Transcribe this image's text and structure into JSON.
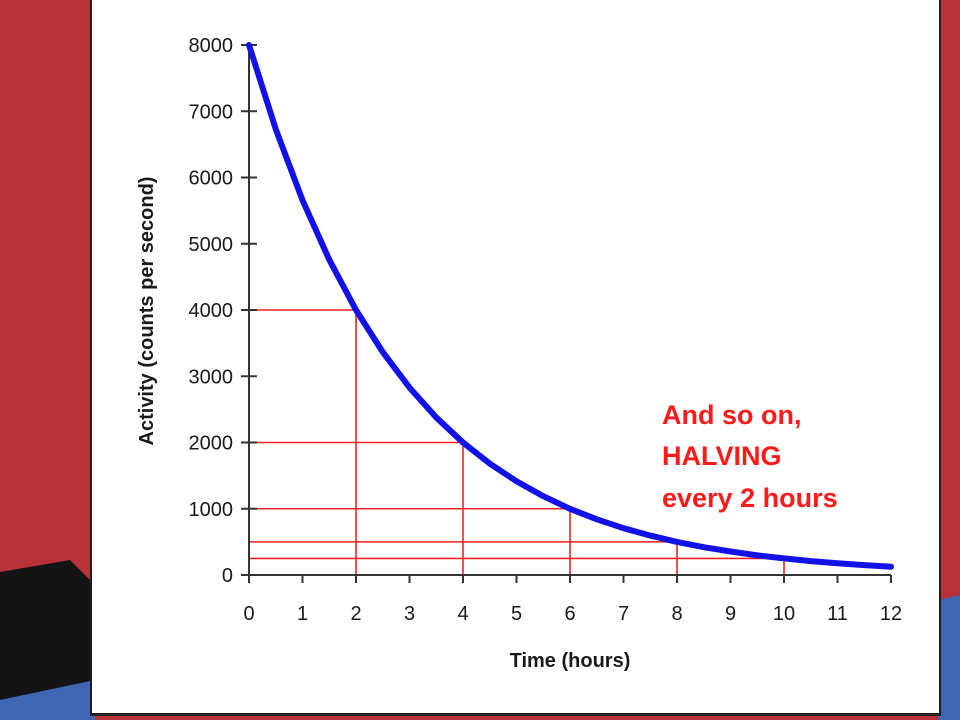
{
  "colors": {
    "slide_red": "#b8323a",
    "slide_black": "#141414",
    "slide_blue": "#3f65b3",
    "curve": "#1212e8",
    "guides": "#ee2222",
    "annotation": "#ff1a1a"
  },
  "chart_data": {
    "type": "line",
    "title": "",
    "xlabel": "Time (hours)",
    "ylabel": "Activity (counts per second)",
    "xlim": [
      0,
      12
    ],
    "ylim": [
      0,
      8000
    ],
    "x_ticks": [
      0,
      1,
      2,
      3,
      4,
      5,
      6,
      7,
      8,
      9,
      10,
      11,
      12
    ],
    "y_ticks": [
      0,
      1000,
      2000,
      3000,
      4000,
      5000,
      6000,
      7000,
      8000
    ],
    "grid": false,
    "series": [
      {
        "x": [
          0,
          0.5,
          1,
          1.5,
          2,
          2.5,
          3,
          3.5,
          4,
          4.5,
          5,
          5.5,
          6,
          6.5,
          7,
          7.5,
          8,
          8.5,
          9,
          9.5,
          10,
          10.5,
          11,
          11.5,
          12
        ],
        "values": [
          8000,
          6727,
          5657,
          4757,
          4000,
          3364,
          2828,
          2378,
          2000,
          1682,
          1414,
          1189,
          1000,
          841,
          707,
          595,
          500,
          420,
          354,
          297,
          250,
          210,
          177,
          149,
          125
        ]
      }
    ],
    "guide_points": [
      {
        "x": 2,
        "y": 4000
      },
      {
        "x": 4,
        "y": 2000
      },
      {
        "x": 6,
        "y": 1000
      },
      {
        "x": 8,
        "y": 500
      },
      {
        "x": 10,
        "y": 250
      }
    ],
    "annotation": [
      "And so on,",
      "HALVING",
      "every 2 hours"
    ]
  }
}
